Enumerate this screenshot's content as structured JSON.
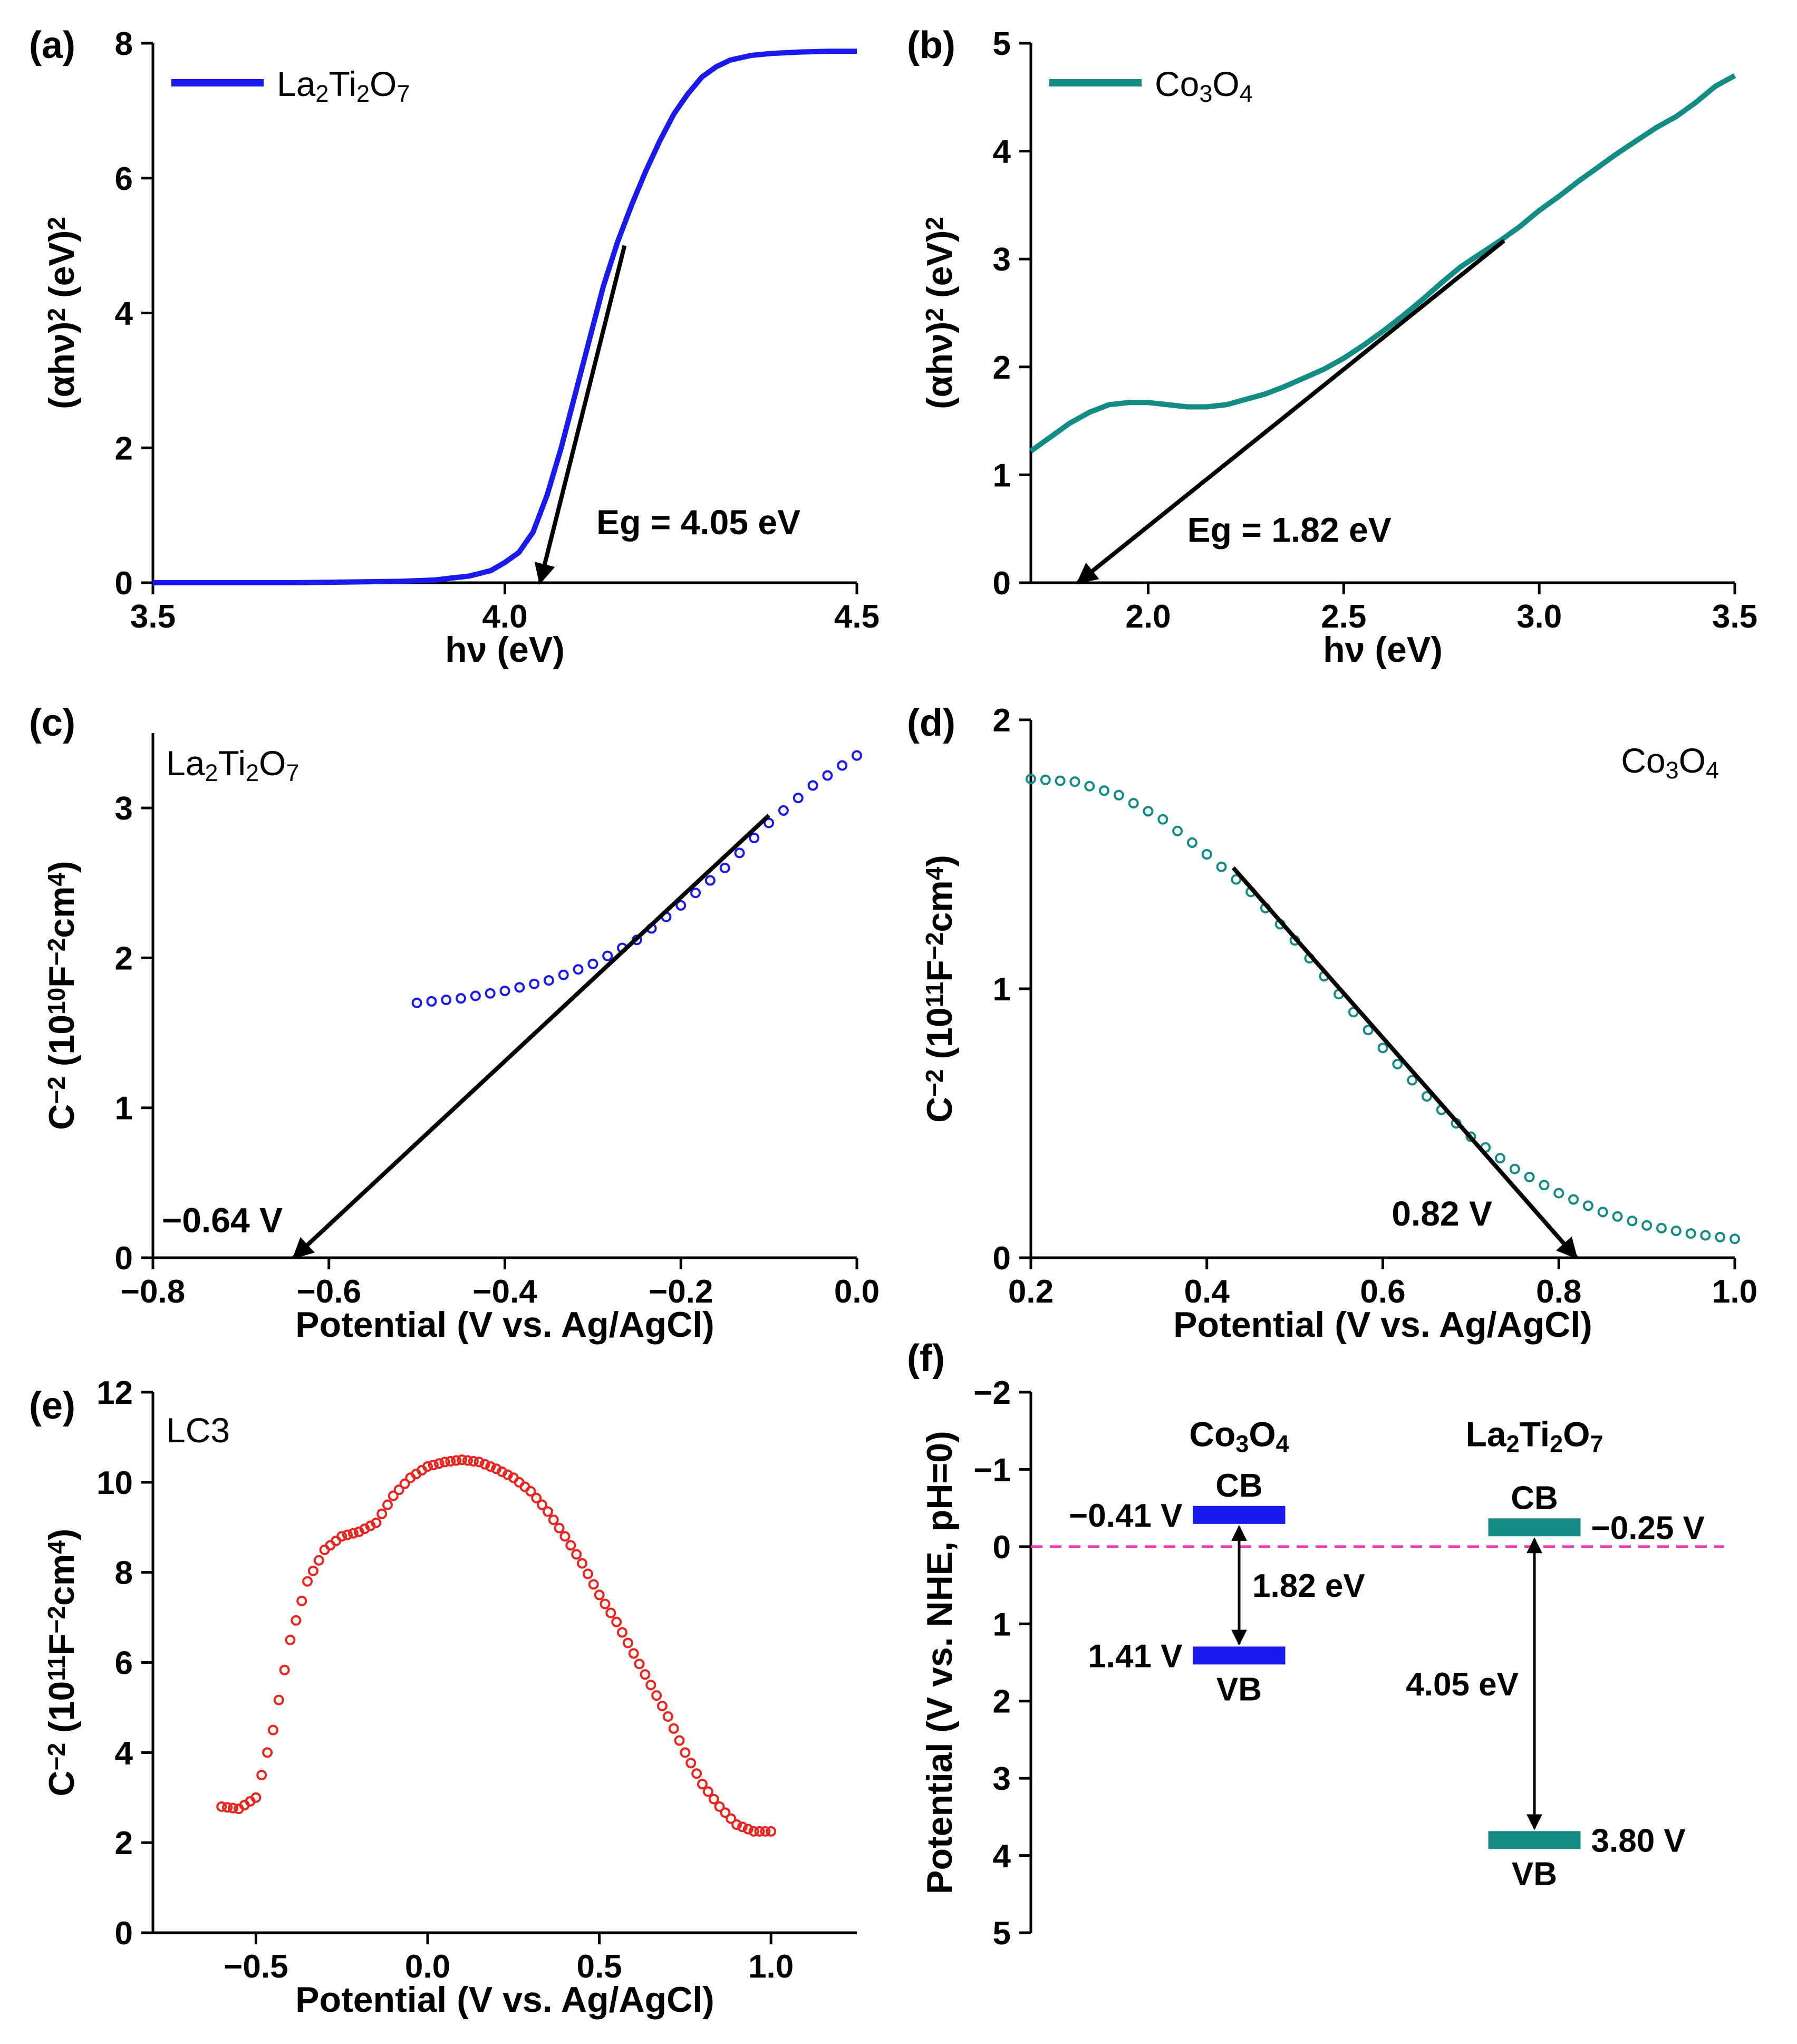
{
  "figure": {
    "background": "#ffffff"
  },
  "chart_data": [
    {
      "panel": "(a)",
      "type": "line",
      "xlabel": "hν (eV)",
      "ylabel": "(αhν)² (eV)²",
      "xlim": [
        3.5,
        4.5
      ],
      "ylim": [
        0,
        8
      ],
      "xticks": [
        3.5,
        4.0,
        4.5
      ],
      "xtick_labels": [
        "3.5",
        "4.0",
        "4.5"
      ],
      "yticks": [
        0,
        2,
        4,
        6,
        8
      ],
      "ytick_labels": [
        "0",
        "2",
        "4",
        "6",
        "8"
      ],
      "grid": false,
      "legend": {
        "label": "La₂Ti₂O₇",
        "position": "top-left"
      },
      "series": [
        {
          "name": "La₂Ti₂O₇",
          "color": "#1a1aee",
          "x": [
            3.5,
            3.7,
            3.85,
            3.9,
            3.95,
            3.98,
            4.0,
            4.02,
            4.04,
            4.06,
            4.08,
            4.1,
            4.12,
            4.14,
            4.16,
            4.18,
            4.2,
            4.22,
            4.24,
            4.26,
            4.28,
            4.3,
            4.32,
            4.35,
            4.38,
            4.42,
            4.46,
            4.5
          ],
          "y": [
            0,
            0,
            0.02,
            0.04,
            0.1,
            0.18,
            0.3,
            0.45,
            0.75,
            1.3,
            2.0,
            2.8,
            3.6,
            4.4,
            5.05,
            5.6,
            6.1,
            6.55,
            6.95,
            7.25,
            7.5,
            7.65,
            7.75,
            7.82,
            7.85,
            7.87,
            7.88,
            7.88
          ]
        }
      ],
      "fit_line": {
        "x": [
          4.17,
          4.05
        ],
        "y": [
          5.0,
          0.0
        ]
      },
      "annotations": [
        {
          "text": "Eg = 4.05 eV",
          "x": 4.13,
          "y": 0.72
        }
      ]
    },
    {
      "panel": "(b)",
      "type": "line",
      "xlabel": "hν (eV)",
      "ylabel": "(αhν)² (eV)²",
      "xlim": [
        1.7,
        3.5
      ],
      "ylim": [
        0,
        5
      ],
      "xticks": [
        2.0,
        2.5,
        3.0,
        3.5
      ],
      "xtick_labels": [
        "2.0",
        "2.5",
        "3.0",
        "3.5"
      ],
      "yticks": [
        0,
        1,
        2,
        3,
        4,
        5
      ],
      "ytick_labels": [
        "0",
        "1",
        "2",
        "3",
        "4",
        "5"
      ],
      "grid": false,
      "legend": {
        "label": "Co₃O₄",
        "position": "top-left"
      },
      "series": [
        {
          "name": "Co₃O₄",
          "color": "#138c85",
          "x": [
            1.7,
            1.75,
            1.8,
            1.85,
            1.9,
            1.95,
            2.0,
            2.05,
            2.1,
            2.15,
            2.2,
            2.25,
            2.3,
            2.35,
            2.4,
            2.45,
            2.5,
            2.55,
            2.6,
            2.65,
            2.7,
            2.75,
            2.8,
            2.85,
            2.9,
            2.95,
            3.0,
            3.05,
            3.1,
            3.15,
            3.2,
            3.25,
            3.3,
            3.35,
            3.4,
            3.45,
            3.5
          ],
          "y": [
            1.22,
            1.35,
            1.48,
            1.58,
            1.65,
            1.67,
            1.67,
            1.65,
            1.63,
            1.63,
            1.65,
            1.7,
            1.75,
            1.82,
            1.9,
            1.98,
            2.08,
            2.2,
            2.33,
            2.47,
            2.62,
            2.78,
            2.93,
            3.05,
            3.17,
            3.3,
            3.45,
            3.58,
            3.72,
            3.85,
            3.98,
            4.1,
            4.22,
            4.32,
            4.45,
            4.6,
            4.7
          ]
        }
      ],
      "fit_line": {
        "x": [
          2.91,
          1.82
        ],
        "y": [
          3.17,
          0.0
        ]
      },
      "annotations": [
        {
          "text": "Eg = 1.82 eV",
          "x": 2.1,
          "y": 0.38
        }
      ]
    },
    {
      "panel": "(c)",
      "type": "scatter",
      "xlabel": "Potential (V vs. Ag/AgCl)",
      "ylabel": "C⁻² (10¹⁰F⁻²cm⁴)",
      "xlim": [
        -0.8,
        0.0
      ],
      "ylim": [
        0,
        3.5
      ],
      "xticks": [
        -0.8,
        -0.6,
        -0.4,
        -0.2,
        0.0
      ],
      "xtick_labels": [
        "−0.8",
        "−0.6",
        "−0.4",
        "−0.2",
        "0.0"
      ],
      "yticks": [
        0,
        1,
        2,
        3
      ],
      "ytick_labels": [
        "0",
        "1",
        "2",
        "3"
      ],
      "grid": false,
      "label": "La₂Ti₂O₇",
      "series": [
        {
          "name": "La₂Ti₂O₇",
          "color": "#1a1aee",
          "x": [
            -0.5,
            -0.45,
            -0.4,
            -0.35,
            -0.3,
            -0.25,
            -0.2,
            -0.15,
            -0.1,
            -0.05,
            0.0
          ],
          "y": [
            1.7,
            1.73,
            1.78,
            1.85,
            1.96,
            2.12,
            2.35,
            2.6,
            2.9,
            3.15,
            3.35
          ]
        }
      ],
      "fit_line": {
        "x": [
          -0.1,
          -0.64
        ],
        "y": [
          2.95,
          0.0
        ]
      },
      "annotations": [
        {
          "text": "−0.64 V",
          "x": -0.79,
          "y": 0.17
        }
      ]
    },
    {
      "panel": "(d)",
      "type": "scatter",
      "xlabel": "Potential (V vs. Ag/AgCl)",
      "ylabel": "C⁻² (10¹¹F⁻²cm⁴)",
      "xlim": [
        0.2,
        1.0
      ],
      "ylim": [
        0,
        2
      ],
      "xticks": [
        0.2,
        0.4,
        0.6,
        0.8,
        1.0
      ],
      "xtick_labels": [
        "0.2",
        "0.4",
        "0.6",
        "0.8",
        "1.0"
      ],
      "yticks": [
        0,
        1,
        2
      ],
      "ytick_labels": [
        "0",
        "1",
        "2"
      ],
      "grid": false,
      "label": "Co₃O₄",
      "series": [
        {
          "name": "Co₃O₄",
          "color": "#138c85",
          "x": [
            0.2,
            0.25,
            0.3,
            0.35,
            0.4,
            0.45,
            0.5,
            0.55,
            0.6,
            0.65,
            0.7,
            0.75,
            0.8,
            0.85,
            0.9,
            0.95,
            1.0
          ],
          "y": [
            1.78,
            1.77,
            1.72,
            1.63,
            1.5,
            1.36,
            1.18,
            0.98,
            0.78,
            0.6,
            0.45,
            0.33,
            0.24,
            0.17,
            0.12,
            0.09,
            0.07
          ]
        }
      ],
      "fit_line": {
        "x": [
          0.43,
          0.82
        ],
        "y": [
          1.45,
          0.0
        ]
      },
      "annotations": [
        {
          "text": "0.82 V",
          "x": 0.61,
          "y": 0.12
        }
      ]
    },
    {
      "panel": "(e)",
      "type": "scatter",
      "xlabel": "Potential (V vs. Ag/AgCl)",
      "ylabel": "C⁻² (10¹¹F⁻²cm⁴)",
      "xlim": [
        -0.8,
        1.25
      ],
      "ylim": [
        0,
        12
      ],
      "xticks": [
        -0.5,
        0.0,
        0.5,
        1.0
      ],
      "xtick_labels": [
        "−0.5",
        "0.0",
        "0.5",
        "1.0"
      ],
      "yticks": [
        0,
        2,
        4,
        6,
        8,
        10,
        12
      ],
      "ytick_labels": [
        "0",
        "2",
        "4",
        "6",
        "8",
        "10",
        "12"
      ],
      "grid": false,
      "label": "LC3",
      "series": [
        {
          "name": "LC3",
          "color": "#e8251f",
          "x": [
            -0.6,
            -0.55,
            -0.5,
            -0.45,
            -0.4,
            -0.35,
            -0.3,
            -0.25,
            -0.2,
            -0.15,
            -0.1,
            -0.05,
            0.0,
            0.05,
            0.1,
            0.15,
            0.2,
            0.25,
            0.3,
            0.35,
            0.4,
            0.45,
            0.5,
            0.55,
            0.6,
            0.65,
            0.7,
            0.75,
            0.8,
            0.85,
            0.9,
            0.95,
            1.0
          ],
          "y": [
            2.8,
            2.75,
            3.0,
            4.5,
            6.5,
            7.8,
            8.5,
            8.8,
            8.9,
            9.1,
            9.7,
            10.1,
            10.35,
            10.45,
            10.5,
            10.45,
            10.3,
            10.1,
            9.8,
            9.35,
            8.8,
            8.2,
            7.5,
            6.9,
            6.2,
            5.5,
            4.8,
            4.0,
            3.3,
            2.8,
            2.4,
            2.25,
            2.25
          ]
        }
      ]
    },
    {
      "panel": "(f)",
      "type": "diagram",
      "ylabel": "Potential (V vs. NHE, pH=0)",
      "ylim": [
        -2,
        5
      ],
      "y_inverted": true,
      "yticks": [
        -2,
        -1,
        0,
        1,
        2,
        3,
        4,
        5
      ],
      "ytick_labels": [
        "−2",
        "−1",
        "0",
        "1",
        "2",
        "3",
        "4",
        "5"
      ],
      "reference_line": {
        "y": 0,
        "color": "#ee33aa"
      },
      "materials": [
        {
          "name": "Co₃O₄",
          "color": "#1a1aee",
          "cb": -0.41,
          "vb": 1.41,
          "cb_label": "CB",
          "vb_label": "VB",
          "cb_value": "−0.41 V",
          "vb_value": "1.41 V",
          "gap_label": "1.82 eV"
        },
        {
          "name": "La₂Ti₂O₇",
          "color": "#138c85",
          "cb": -0.25,
          "vb": 3.8,
          "cb_label": "CB",
          "vb_label": "VB",
          "cb_value": "−0.25 V",
          "vb_value": "3.80 V",
          "gap_label": "4.05 eV"
        }
      ]
    }
  ]
}
